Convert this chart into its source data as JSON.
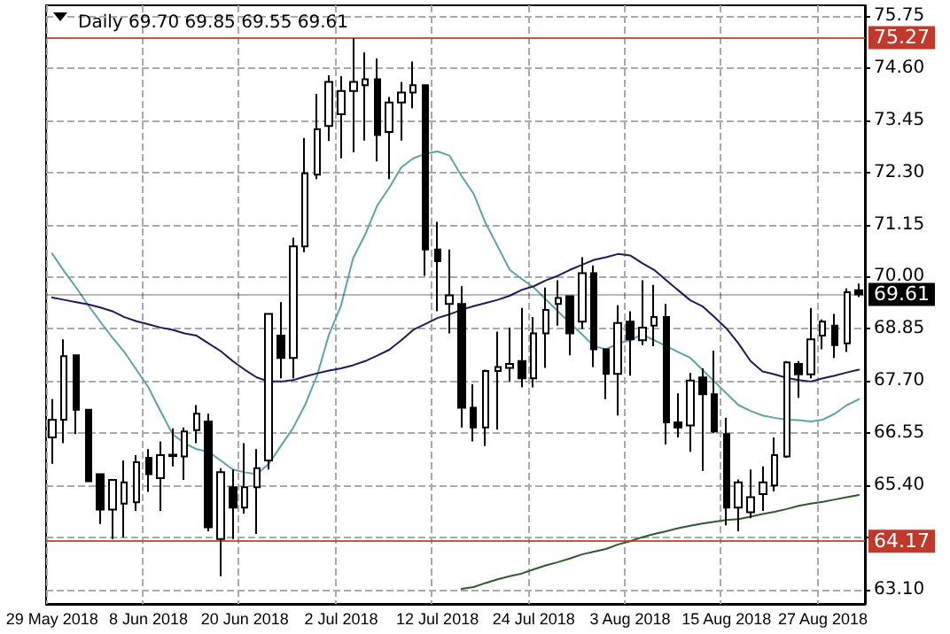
{
  "chart_data": {
    "type": "candlestick",
    "title": "Daily 69.70 69.85 69.55 69.61",
    "categories": [
      "29 May 2018",
      null,
      null,
      null,
      null,
      null,
      null,
      null,
      "8 Jun 2018",
      null,
      null,
      null,
      null,
      null,
      null,
      null,
      "20 Jun 2018",
      null,
      null,
      null,
      null,
      null,
      null,
      null,
      "2 Jul 2018",
      null,
      null,
      null,
      null,
      null,
      null,
      null,
      "12 Jul 2018",
      null,
      null,
      null,
      null,
      null,
      null,
      null,
      "24 Jul 2018",
      null,
      null,
      null,
      null,
      null,
      null,
      null,
      "3 Aug 2018",
      null,
      null,
      null,
      null,
      null,
      null,
      null,
      "15 Aug 2018",
      null,
      null,
      null,
      null,
      null,
      null,
      null,
      "27 Aug 2018",
      null,
      null,
      null
    ],
    "ohlc": [
      [
        66.46,
        67.3,
        65.88,
        66.85
      ],
      [
        66.85,
        68.62,
        66.33,
        68.25
      ],
      [
        68.27,
        68.27,
        66.53,
        67.07
      ],
      [
        67.07,
        67.07,
        65.49,
        65.49
      ],
      [
        65.65,
        65.65,
        64.55,
        64.87
      ],
      [
        64.87,
        65.52,
        64.22,
        65.52
      ],
      [
        65.0,
        65.95,
        64.26,
        65.47
      ],
      [
        65.03,
        66.07,
        64.84,
        65.91
      ],
      [
        66.01,
        66.2,
        65.26,
        65.65
      ],
      [
        65.56,
        66.37,
        64.84,
        66.07
      ],
      [
        66.05,
        66.66,
        65.82,
        66.08
      ],
      [
        66.04,
        66.68,
        65.52,
        66.59
      ],
      [
        66.62,
        67.17,
        66.33,
        66.98
      ],
      [
        66.81,
        66.98,
        64.39,
        64.48
      ],
      [
        64.22,
        65.78,
        63.4,
        65.69
      ],
      [
        65.36,
        65.75,
        64.22,
        64.91
      ],
      [
        64.91,
        66.33,
        64.78,
        65.36
      ],
      [
        65.36,
        66.2,
        64.33,
        65.78
      ],
      [
        65.95,
        69.18,
        65.75,
        69.18
      ],
      [
        68.7,
        69.44,
        67.76,
        68.21
      ],
      [
        68.21,
        70.86,
        67.76,
        70.67
      ],
      [
        70.67,
        73.06,
        70.54,
        72.28
      ],
      [
        72.25,
        74.03,
        72.15,
        73.25
      ],
      [
        73.32,
        74.44,
        72.99,
        74.29
      ],
      [
        73.58,
        74.42,
        72.61,
        74.09
      ],
      [
        74.09,
        75.26,
        72.74,
        74.29
      ],
      [
        74.22,
        74.94,
        73.0,
        74.35
      ],
      [
        74.35,
        74.81,
        72.54,
        73.12
      ],
      [
        73.19,
        73.96,
        72.15,
        73.84
      ],
      [
        73.84,
        74.29,
        73.0,
        74.06
      ],
      [
        74.06,
        74.74,
        73.71,
        74.22
      ],
      [
        74.22,
        74.22,
        70.02,
        70.6
      ],
      [
        70.6,
        71.21,
        69.24,
        70.34
      ],
      [
        69.4,
        70.6,
        68.75,
        69.59
      ],
      [
        69.4,
        69.79,
        66.68,
        67.11
      ],
      [
        67.11,
        67.63,
        66.37,
        66.68
      ],
      [
        66.68,
        67.95,
        66.27,
        67.92
      ],
      [
        67.92,
        68.79,
        66.63,
        68.01
      ],
      [
        67.99,
        68.88,
        67.69,
        68.08
      ],
      [
        68.14,
        69.31,
        67.56,
        67.76
      ],
      [
        67.76,
        69.11,
        67.56,
        68.75
      ],
      [
        68.75,
        69.76,
        67.99,
        69.27
      ],
      [
        69.4,
        69.92,
        68.92,
        69.53
      ],
      [
        69.57,
        69.57,
        68.27,
        68.75
      ],
      [
        69.01,
        70.43,
        68.85,
        70.08
      ],
      [
        70.08,
        70.25,
        68.01,
        68.4
      ],
      [
        68.4,
        68.4,
        67.3,
        67.86
      ],
      [
        67.86,
        69.37,
        66.94,
        68.98
      ],
      [
        69.01,
        69.24,
        67.82,
        68.62
      ],
      [
        68.6,
        69.92,
        68.49,
        68.88
      ],
      [
        68.92,
        69.82,
        68.47,
        69.11
      ],
      [
        69.11,
        69.4,
        66.3,
        66.79
      ],
      [
        66.79,
        67.43,
        66.46,
        66.68
      ],
      [
        66.72,
        67.88,
        66.14,
        67.71
      ],
      [
        67.78,
        67.98,
        65.72,
        67.41
      ],
      [
        67.41,
        68.37,
        66.55,
        66.59
      ],
      [
        66.53,
        66.89,
        64.52,
        64.91
      ],
      [
        64.91,
        65.53,
        64.39,
        65.47
      ],
      [
        64.81,
        65.75,
        64.68,
        65.14
      ],
      [
        65.21,
        65.82,
        64.84,
        65.47
      ],
      [
        65.4,
        66.46,
        65.27,
        66.07
      ],
      [
        66.04,
        68.14,
        66.01,
        68.11
      ],
      [
        68.08,
        68.14,
        67.33,
        67.85
      ],
      [
        67.85,
        69.31,
        67.76,
        68.62
      ],
      [
        68.7,
        69.06,
        68.4,
        69.01
      ],
      [
        68.92,
        69.18,
        68.21,
        68.49
      ],
      [
        68.53,
        69.74,
        68.34,
        69.66
      ],
      [
        69.7,
        69.85,
        69.55,
        69.61
      ]
    ],
    "colors": [
      "#ffffff",
      "#ffffff",
      "#000000",
      "#000000",
      "#000000",
      "#ffffff",
      "#ffffff",
      "#ffffff",
      "#000000",
      "#ffffff",
      "#ffffff",
      "#ffffff",
      "#ffffff",
      "#000000",
      "#ffffff",
      "#000000",
      "#ffffff",
      "#ffffff",
      "#ffffff",
      "#000000",
      "#ffffff",
      "#ffffff",
      "#ffffff",
      "#ffffff",
      "#ffffff",
      "#ffffff",
      "#ffffff",
      "#000000",
      "#ffffff",
      "#ffffff",
      "#ffffff",
      "#000000",
      "#000000",
      "#ffffff",
      "#000000",
      "#000000",
      "#ffffff",
      "#ffffff",
      "#ffffff",
      "#000000",
      "#ffffff",
      "#ffffff",
      "#ffffff",
      "#000000",
      "#ffffff",
      "#000000",
      "#000000",
      "#ffffff",
      "#000000",
      "#ffffff",
      "#ffffff",
      "#000000",
      "#000000",
      "#ffffff",
      "#000000",
      "#000000",
      "#000000",
      "#ffffff",
      "#ffffff",
      "#ffffff",
      "#ffffff",
      "#ffffff",
      "#000000",
      "#ffffff",
      "#ffffff",
      "#000000",
      "#ffffff",
      "#000000"
    ],
    "series": [
      {
        "type": "line",
        "color": "#5fa3a3",
        "values": [
          70.51,
          70.12,
          69.76,
          69.37,
          69.01,
          68.66,
          68.34,
          67.95,
          67.56,
          67.04,
          66.53,
          66.33,
          66.2,
          66.14,
          65.95,
          65.75,
          65.69,
          65.65,
          65.88,
          66.27,
          66.66,
          67.17,
          67.82,
          68.73,
          69.37,
          70.41,
          70.93,
          71.57,
          71.96,
          72.41,
          72.61,
          72.71,
          72.76,
          72.67,
          72.22,
          71.83,
          71.18,
          70.67,
          70.15,
          69.95,
          69.76,
          69.5,
          69.24,
          68.98,
          68.73,
          68.47,
          68.4,
          68.53,
          68.6,
          68.73,
          68.6,
          68.47,
          68.34,
          68.21,
          67.95,
          67.69,
          67.43,
          67.17,
          67.04,
          66.94,
          66.89,
          66.85,
          66.84,
          66.81,
          66.85,
          66.98,
          67.17,
          67.3
        ]
      },
      {
        "type": "line",
        "color": "#1c1c5a",
        "values": [
          69.54,
          69.49,
          69.44,
          69.39,
          69.32,
          69.24,
          69.11,
          69.02,
          68.95,
          68.88,
          68.83,
          68.75,
          68.7,
          68.53,
          68.36,
          68.14,
          67.95,
          67.78,
          67.69,
          67.69,
          67.72,
          67.8,
          67.87,
          67.93,
          67.98,
          68.05,
          68.14,
          68.26,
          68.39,
          68.6,
          68.83,
          68.96,
          69.09,
          69.17,
          69.27,
          69.35,
          69.42,
          69.49,
          69.58,
          69.71,
          69.79,
          69.92,
          70.02,
          70.15,
          70.26,
          70.37,
          70.43,
          70.5,
          70.47,
          70.3,
          70.15,
          69.92,
          69.7,
          69.48,
          69.35,
          69.11,
          68.86,
          68.53,
          68.14,
          67.91,
          67.85,
          67.77,
          67.72,
          67.69,
          67.76,
          67.82,
          67.89,
          67.95
        ]
      },
      {
        "type": "line",
        "color": "#2f5a30",
        "values": [
          null,
          null,
          null,
          null,
          null,
          null,
          null,
          null,
          null,
          null,
          null,
          null,
          null,
          null,
          null,
          null,
          null,
          null,
          null,
          null,
          null,
          null,
          null,
          null,
          null,
          null,
          null,
          null,
          null,
          null,
          null,
          null,
          null,
          null,
          63.12,
          63.16,
          63.25,
          63.33,
          63.4,
          63.46,
          63.55,
          63.64,
          63.71,
          63.79,
          63.88,
          63.94,
          64.0,
          64.1,
          64.17,
          64.26,
          64.33,
          64.39,
          64.46,
          64.51,
          64.56,
          64.6,
          64.64,
          64.66,
          64.71,
          64.77,
          64.82,
          64.88,
          64.95,
          65.0,
          65.04,
          65.09,
          65.14,
          65.19
        ]
      }
    ],
    "ylim": [
      62.79,
      75.98
    ],
    "yticks": [
      {
        "value": 63.1,
        "label": "63.10"
      },
      {
        "value": 64.25,
        "label": null
      },
      {
        "value": 65.4,
        "label": "65.40"
      },
      {
        "value": 66.55,
        "label": "66.55"
      },
      {
        "value": 67.7,
        "label": "67.70"
      },
      {
        "value": 68.85,
        "label": "68.85"
      },
      {
        "value": 70,
        "label": "70.00"
      },
      {
        "value": 71.15,
        "label": "71.15"
      },
      {
        "value": 72.3,
        "label": "72.30"
      },
      {
        "value": 73.45,
        "label": "73.45"
      },
      {
        "value": 74.6,
        "label": "74.60"
      },
      {
        "value": 75.75,
        "label": "75.75"
      }
    ],
    "ref_lines": [
      {
        "axis": "y",
        "value": 75.27,
        "label": "75.27",
        "color": "#c0392b"
      },
      {
        "axis": "y",
        "value": 64.17,
        "label": "64.17",
        "color": "#c0392b"
      },
      {
        "axis": "y",
        "value": 69.61,
        "label": "69.61",
        "color": "#000000"
      }
    ],
    "grid": true,
    "marker": "none"
  }
}
